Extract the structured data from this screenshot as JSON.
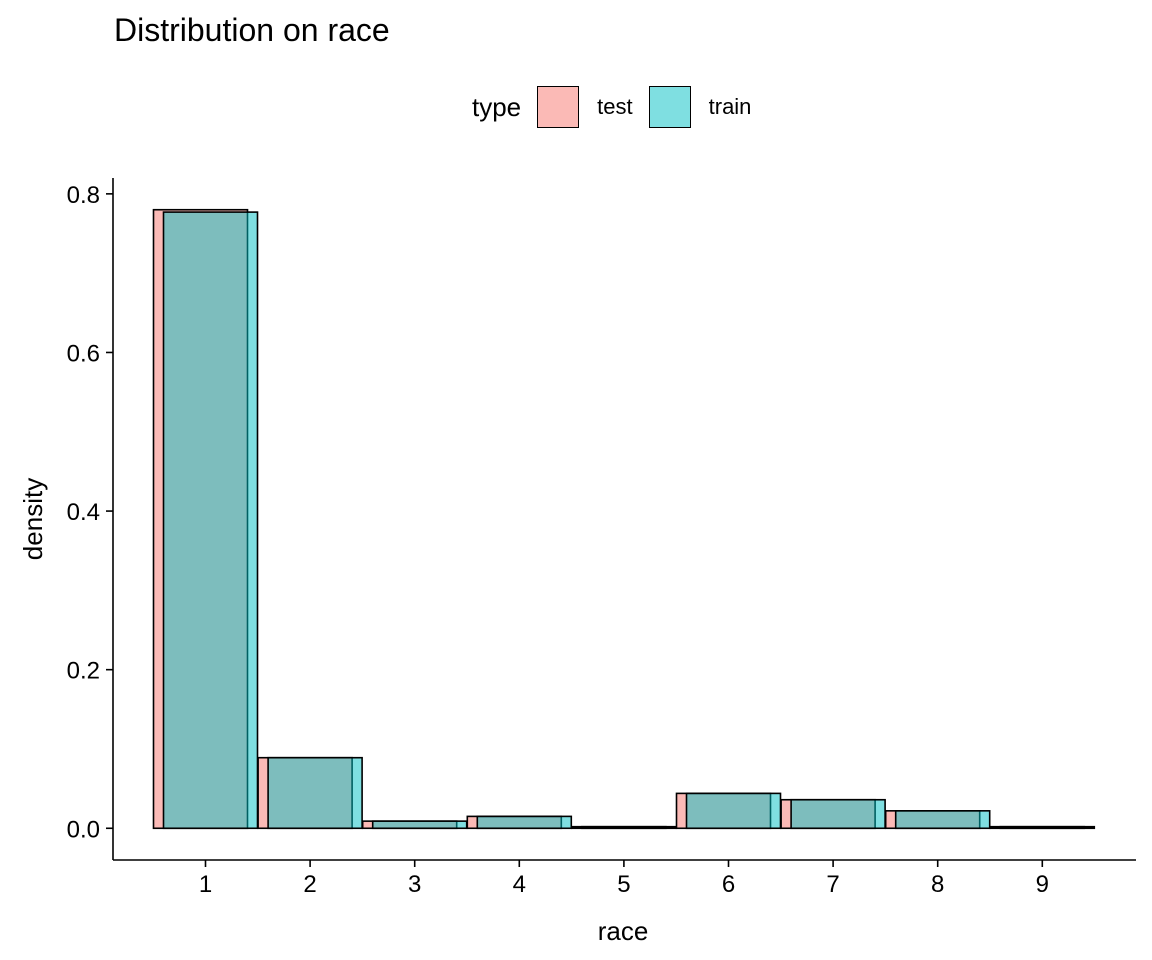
{
  "chart_data": {
    "type": "bar",
    "title": "Distribution on race",
    "xlabel": "race",
    "ylabel": "density",
    "categories": [
      "1",
      "2",
      "3",
      "4",
      "5",
      "6",
      "7",
      "8",
      "9"
    ],
    "series": [
      {
        "name": "test",
        "values": [
          0.78,
          0.089,
          0.009,
          0.015,
          0.002,
          0.044,
          0.036,
          0.022,
          0.002
        ]
      },
      {
        "name": "train",
        "values": [
          0.777,
          0.089,
          0.009,
          0.015,
          0.002,
          0.044,
          0.036,
          0.022,
          0.002
        ]
      }
    ],
    "ylim": [
      -0.04,
      0.82
    ],
    "yticks": [
      "0.0",
      "0.2",
      "0.4",
      "0.6",
      "0.8"
    ],
    "grid": false,
    "legend": {
      "title": "type",
      "position": "top"
    },
    "colors": {
      "test": "#F8766D",
      "train": "#00BFC4"
    },
    "bar_opacity": 0.5
  }
}
